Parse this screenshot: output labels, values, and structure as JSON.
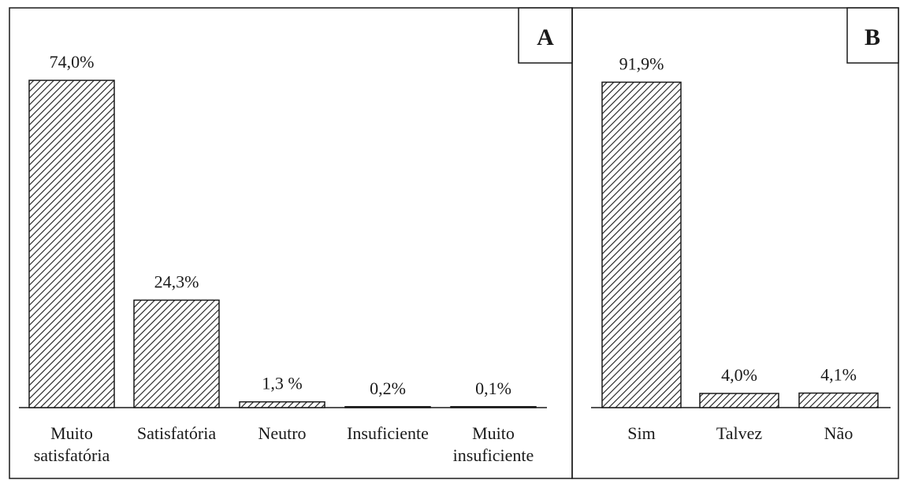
{
  "chart_data": [
    {
      "type": "bar",
      "panel_label": "A",
      "categories": [
        [
          "Muito",
          "satisfatória"
        ],
        [
          "Satisfatória"
        ],
        [
          "Neutro"
        ],
        [
          "Insuficiente"
        ],
        [
          "Muito",
          "insuficiente"
        ]
      ],
      "values": [
        74.0,
        24.3,
        1.3,
        0.2,
        0.1
      ],
      "value_labels": [
        "74,0%",
        "24,3%",
        "1,3 %",
        "0,2%",
        "0,1%"
      ],
      "unit": "%",
      "pattern": "diagonal-hatch",
      "grid": false,
      "title": "",
      "xlabel": "",
      "ylabel": ""
    },
    {
      "type": "bar",
      "panel_label": "B",
      "categories": [
        [
          "Sim"
        ],
        [
          "Talvez"
        ],
        [
          "Não"
        ]
      ],
      "values": [
        91.9,
        4.0,
        4.1
      ],
      "value_labels": [
        "91,9%",
        "4,0%",
        "4,1%"
      ],
      "unit": "%",
      "pattern": "diagonal-hatch",
      "grid": false,
      "title": "",
      "xlabel": "",
      "ylabel": ""
    }
  ],
  "colors": {
    "bar_stroke": "#1a1a1a",
    "hatch": "#1a1a1a",
    "background": "#ffffff",
    "frame": "#1a1a1a"
  }
}
